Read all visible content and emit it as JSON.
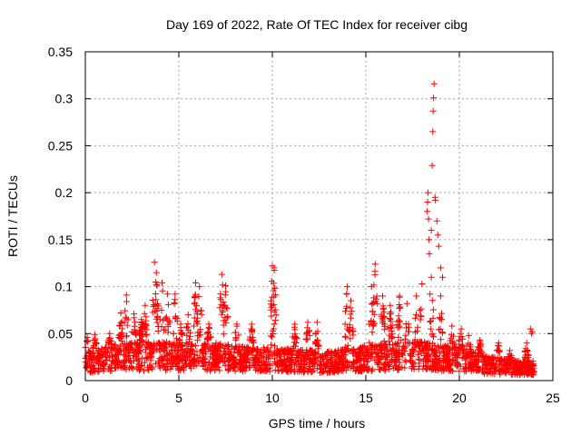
{
  "chart_data": {
    "type": "scatter",
    "title": "Day 169 of 2022, Rate Of TEC Index for receiver cibg",
    "xlabel": "GPS time / hours",
    "ylabel": "ROTI / TECUs",
    "xlim": [
      0,
      25
    ],
    "ylim": [
      0,
      0.35
    ],
    "xticks": [
      0,
      5,
      10,
      15,
      20,
      25
    ],
    "yticks": [
      0,
      0.05,
      0.1,
      0.15,
      0.2,
      0.25,
      0.3,
      0.35
    ],
    "ytick_labels": [
      "0",
      "0.05",
      "0.1",
      "0.15",
      "0.2",
      "0.25",
      "0.3",
      "0.35"
    ],
    "grid": true,
    "marker": "plus",
    "color": "#ff0000",
    "series": [
      {
        "x_range": [
          0,
          24
        ],
        "baseline": [
          [
            0.0,
            0.022
          ],
          [
            1.0,
            0.026
          ],
          [
            2.0,
            0.03
          ],
          [
            3.0,
            0.03
          ],
          [
            4.0,
            0.031
          ],
          [
            5.0,
            0.029
          ],
          [
            6.0,
            0.029
          ],
          [
            7.0,
            0.03
          ],
          [
            8.0,
            0.028
          ],
          [
            9.0,
            0.026
          ],
          [
            10.0,
            0.026
          ],
          [
            11.0,
            0.025
          ],
          [
            12.0,
            0.024
          ],
          [
            13.0,
            0.023
          ],
          [
            14.0,
            0.025
          ],
          [
            15.0,
            0.028
          ],
          [
            16.0,
            0.03
          ],
          [
            17.0,
            0.03
          ],
          [
            18.0,
            0.031
          ],
          [
            19.0,
            0.029
          ],
          [
            20.0,
            0.026
          ],
          [
            21.0,
            0.022
          ],
          [
            22.0,
            0.018
          ],
          [
            23.0,
            0.016
          ],
          [
            24.0,
            0.016
          ]
        ],
        "bursts": [
          [
            0.1,
            0.046
          ],
          [
            0.5,
            0.049
          ],
          [
            1.3,
            0.05
          ],
          [
            1.9,
            0.072
          ],
          [
            2.2,
            0.091
          ],
          [
            2.6,
            0.071
          ],
          [
            3.0,
            0.065
          ],
          [
            3.2,
            0.08
          ],
          [
            3.7,
            0.126
          ],
          [
            3.8,
            0.115
          ],
          [
            4.1,
            0.104
          ],
          [
            4.4,
            0.092
          ],
          [
            4.8,
            0.092
          ],
          [
            5.1,
            0.06
          ],
          [
            5.5,
            0.07
          ],
          [
            5.9,
            0.104
          ],
          [
            6.1,
            0.1
          ],
          [
            6.6,
            0.06
          ],
          [
            7.3,
            0.113
          ],
          [
            7.5,
            0.101
          ],
          [
            8.1,
            0.06
          ],
          [
            8.9,
            0.06
          ],
          [
            10.0,
            0.122
          ],
          [
            10.1,
            0.12
          ],
          [
            11.2,
            0.06
          ],
          [
            11.9,
            0.062
          ],
          [
            12.4,
            0.062
          ],
          [
            14.0,
            0.1
          ],
          [
            14.2,
            0.085
          ],
          [
            15.3,
            0.1
          ],
          [
            15.5,
            0.124
          ],
          [
            15.9,
            0.09
          ],
          [
            16.3,
            0.08
          ],
          [
            16.8,
            0.09
          ],
          [
            17.2,
            0.082
          ],
          [
            17.7,
            0.09
          ],
          [
            18.0,
            0.103
          ],
          [
            18.5,
            0.11
          ],
          [
            19.0,
            0.09
          ],
          [
            19.6,
            0.058
          ],
          [
            20.1,
            0.055
          ],
          [
            20.5,
            0.048
          ],
          [
            21.1,
            0.043
          ],
          [
            22.1,
            0.04
          ],
          [
            22.7,
            0.032
          ],
          [
            23.6,
            0.04
          ]
        ],
        "outliers": [
          [
            9.95,
            0.078
          ],
          [
            10.0,
            0.08
          ],
          [
            18.28,
            0.18
          ],
          [
            18.3,
            0.19
          ],
          [
            18.32,
            0.2
          ],
          [
            18.35,
            0.172
          ],
          [
            18.38,
            0.15
          ],
          [
            18.4,
            0.135
          ],
          [
            18.5,
            0.16
          ],
          [
            18.55,
            0.229
          ],
          [
            18.58,
            0.265
          ],
          [
            18.6,
            0.287
          ],
          [
            18.62,
            0.301
          ],
          [
            18.65,
            0.316
          ],
          [
            18.7,
            0.195
          ],
          [
            18.72,
            0.192
          ],
          [
            18.8,
            0.17
          ],
          [
            18.85,
            0.155
          ],
          [
            18.9,
            0.143
          ],
          [
            19.0,
            0.12
          ],
          [
            19.1,
            0.11
          ],
          [
            23.8,
            0.055
          ],
          [
            23.9,
            0.052
          ],
          [
            23.85,
            0.05
          ]
        ]
      }
    ]
  }
}
